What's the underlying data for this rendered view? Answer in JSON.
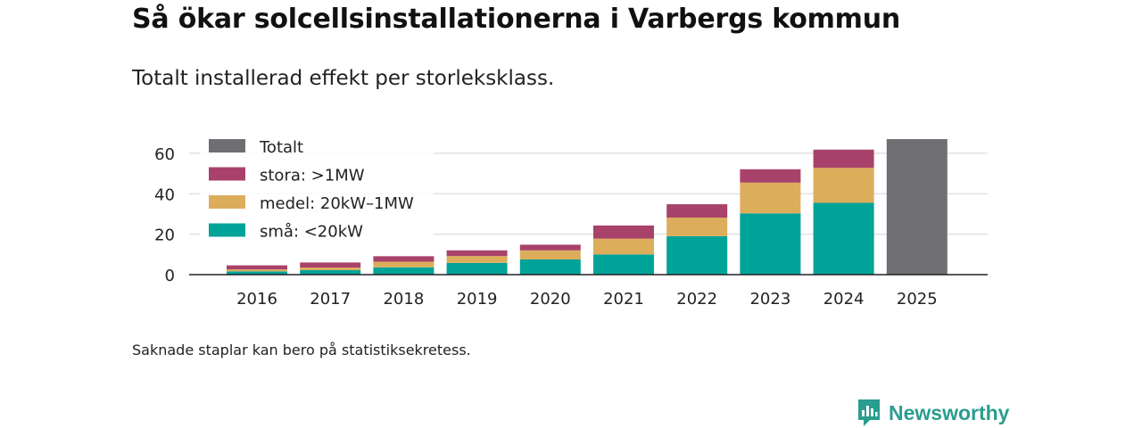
{
  "title": "Så ökar solcellsinstallationerna i Varbergs kommun",
  "subtitle": "Totalt installerad effekt per storleksklass.",
  "footnote": "Saknade staplar kan bero på statistiksekretess.",
  "brand": {
    "name": "Newsworthy"
  },
  "chart_data": {
    "type": "bar",
    "stacked": true,
    "categories": [
      "2016",
      "2017",
      "2018",
      "2019",
      "2020",
      "2021",
      "2022",
      "2023",
      "2024",
      "2025"
    ],
    "series": [
      {
        "name": "små: <20kW",
        "color": "#00a398",
        "values": [
          1.6,
          2.2,
          3.6,
          5.8,
          7.5,
          10.0,
          19.0,
          30.3,
          35.5,
          null
        ]
      },
      {
        "name": "medel: 20kW–1MW",
        "color": "#dcad5b",
        "values": [
          1.0,
          1.3,
          2.8,
          3.4,
          4.5,
          7.8,
          9.2,
          15.2,
          17.3,
          null
        ]
      },
      {
        "name": "stora: >1MW",
        "color": "#a8426a",
        "values": [
          2.0,
          2.5,
          2.7,
          2.8,
          2.8,
          6.5,
          6.6,
          6.6,
          9.0,
          null
        ]
      },
      {
        "name": "Totalt",
        "color": "#6e6e73",
        "values": [
          null,
          null,
          null,
          null,
          null,
          null,
          null,
          null,
          null,
          67.0
        ]
      }
    ],
    "legend_order": [
      "Totalt",
      "stora: >1MW",
      "medel: 20kW–1MW",
      "små: <20kW"
    ],
    "y_ticks": [
      0,
      20,
      40,
      60
    ],
    "ylim": [
      0,
      67
    ],
    "xlabel": "",
    "ylabel": "",
    "grid": true,
    "legend_position": "top-left"
  }
}
